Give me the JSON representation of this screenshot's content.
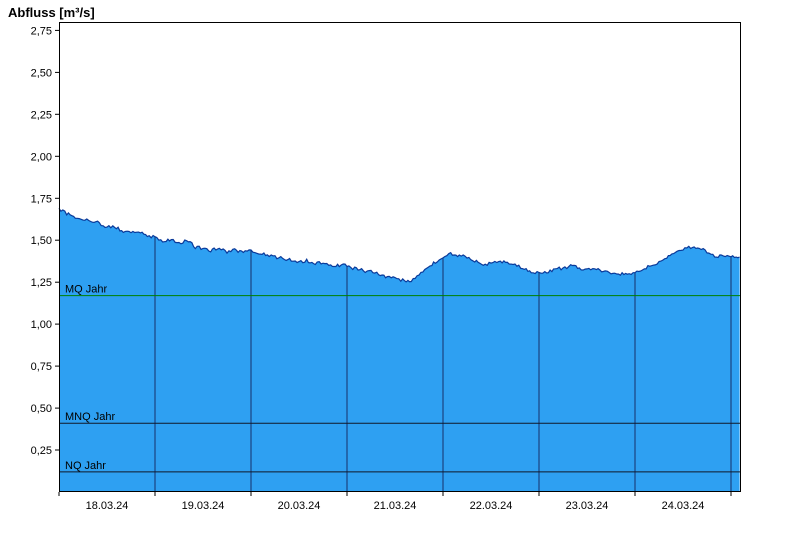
{
  "page": {
    "title": "Abfluss [m³/s]"
  },
  "chart_data": {
    "type": "area",
    "title": "Abfluss [m³/s]",
    "ylabel": "Abfluss [m³/s]",
    "xlabel": "",
    "legend": "none",
    "grid": {
      "vertical_day_lines": true,
      "horizontal": false
    },
    "x_axis": {
      "tick_labels": [
        "18.03.24",
        "19.03.24",
        "20.03.24",
        "21.03.24",
        "22.03.24",
        "23.03.24",
        "24.03.24"
      ],
      "days_span": 7.09
    },
    "y_axis": {
      "lim": [
        0,
        2.8
      ],
      "ticks": [
        0.25,
        0.5,
        0.75,
        1.0,
        1.25,
        1.5,
        1.75,
        2.0,
        2.25,
        2.5,
        2.75
      ],
      "tick_labels": [
        "0,25",
        "0,50",
        "0,75",
        "1,00",
        "1,25",
        "1,50",
        "1,75",
        "2,00",
        "2,25",
        "2,50",
        "2,75"
      ]
    },
    "reference_lines": [
      {
        "label": "MQ Jahr",
        "value": 1.17,
        "color": "#008000"
      },
      {
        "label": "MNQ Jahr",
        "value": 0.41,
        "color": "#101828"
      },
      {
        "label": "NQ Jahr",
        "value": 0.12,
        "color": "#101828"
      }
    ],
    "series": [
      {
        "name": "Abfluss",
        "points": [
          [
            0.0,
            1.69
          ],
          [
            0.08,
            1.66
          ],
          [
            0.17,
            1.64
          ],
          [
            0.25,
            1.62
          ],
          [
            0.33,
            1.62
          ],
          [
            0.42,
            1.6
          ],
          [
            0.5,
            1.58
          ],
          [
            0.58,
            1.58
          ],
          [
            0.67,
            1.55
          ],
          [
            0.75,
            1.55
          ],
          [
            0.83,
            1.55
          ],
          [
            0.92,
            1.52
          ],
          [
            1.0,
            1.52
          ],
          [
            1.08,
            1.49
          ],
          [
            1.17,
            1.51
          ],
          [
            1.25,
            1.48
          ],
          [
            1.33,
            1.5
          ],
          [
            1.42,
            1.46
          ],
          [
            1.5,
            1.45
          ],
          [
            1.58,
            1.44
          ],
          [
            1.67,
            1.45
          ],
          [
            1.75,
            1.43
          ],
          [
            1.83,
            1.44
          ],
          [
            1.92,
            1.43
          ],
          [
            2.0,
            1.44
          ],
          [
            2.08,
            1.42
          ],
          [
            2.17,
            1.41
          ],
          [
            2.25,
            1.4
          ],
          [
            2.33,
            1.39
          ],
          [
            2.42,
            1.38
          ],
          [
            2.5,
            1.37
          ],
          [
            2.58,
            1.38
          ],
          [
            2.67,
            1.36
          ],
          [
            2.75,
            1.37
          ],
          [
            2.83,
            1.35
          ],
          [
            2.92,
            1.35
          ],
          [
            3.0,
            1.35
          ],
          [
            3.08,
            1.33
          ],
          [
            3.17,
            1.32
          ],
          [
            3.25,
            1.31
          ],
          [
            3.33,
            1.3
          ],
          [
            3.42,
            1.28
          ],
          [
            3.5,
            1.27
          ],
          [
            3.58,
            1.26
          ],
          [
            3.67,
            1.26
          ],
          [
            3.75,
            1.3
          ],
          [
            3.83,
            1.33
          ],
          [
            3.92,
            1.37
          ],
          [
            4.0,
            1.4
          ],
          [
            4.08,
            1.42
          ],
          [
            4.17,
            1.41
          ],
          [
            4.25,
            1.4
          ],
          [
            4.33,
            1.38
          ],
          [
            4.42,
            1.36
          ],
          [
            4.5,
            1.36
          ],
          [
            4.58,
            1.38
          ],
          [
            4.67,
            1.36
          ],
          [
            4.75,
            1.36
          ],
          [
            4.83,
            1.33
          ],
          [
            4.92,
            1.31
          ],
          [
            5.0,
            1.31
          ],
          [
            5.08,
            1.31
          ],
          [
            5.17,
            1.33
          ],
          [
            5.25,
            1.33
          ],
          [
            5.33,
            1.35
          ],
          [
            5.42,
            1.33
          ],
          [
            5.5,
            1.33
          ],
          [
            5.58,
            1.33
          ],
          [
            5.67,
            1.32
          ],
          [
            5.75,
            1.31
          ],
          [
            5.83,
            1.3
          ],
          [
            5.92,
            1.3
          ],
          [
            6.0,
            1.31
          ],
          [
            6.08,
            1.33
          ],
          [
            6.17,
            1.35
          ],
          [
            6.25,
            1.37
          ],
          [
            6.33,
            1.4
          ],
          [
            6.42,
            1.42
          ],
          [
            6.5,
            1.44
          ],
          [
            6.58,
            1.46
          ],
          [
            6.67,
            1.46
          ],
          [
            6.75,
            1.43
          ],
          [
            6.83,
            1.41
          ],
          [
            6.92,
            1.4
          ],
          [
            7.0,
            1.4
          ],
          [
            7.09,
            1.4
          ]
        ]
      }
    ],
    "colors": {
      "fill": "#2EA0F2",
      "line": "#0A3A9A",
      "grid": "#17306B",
      "axis": "#000000",
      "background": "#FFFFFF"
    }
  }
}
